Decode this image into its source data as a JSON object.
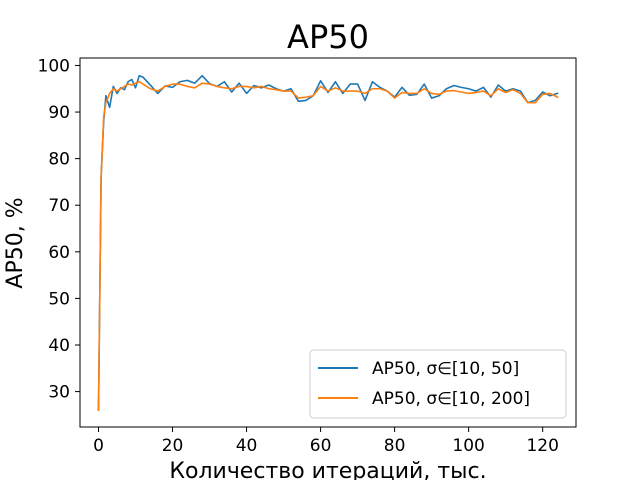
{
  "chart_data": {
    "type": "line",
    "title": "AP50",
    "xlabel": "Количество итераций, тыс.",
    "ylabel": "AP50, %",
    "xlim": [
      -5,
      129
    ],
    "ylim": [
      22.4,
      101.6
    ],
    "xticks": [
      0,
      20,
      40,
      60,
      80,
      100,
      120
    ],
    "yticks": [
      30,
      40,
      50,
      60,
      70,
      80,
      90,
      100
    ],
    "xticklabels": [
      "0",
      "20",
      "40",
      "60",
      "80",
      "100",
      "120"
    ],
    "yticklabels": [
      "30",
      "40",
      "50",
      "60",
      "70",
      "80",
      "90",
      "100"
    ],
    "grid": false,
    "legend_position": "lower-right",
    "series": [
      {
        "name": "AP50, σ∈[10, 50]",
        "color": "#1f77b4",
        "x": [
          0,
          0.7,
          1.4,
          2,
          3,
          4,
          5,
          6,
          7,
          8,
          9,
          10,
          11,
          12,
          14,
          16,
          18,
          20,
          22,
          24,
          26,
          28,
          30,
          32,
          34,
          36,
          38,
          40,
          42,
          44,
          46,
          48,
          50,
          52,
          54,
          56,
          58,
          60,
          62,
          64,
          66,
          68,
          70,
          72,
          74,
          76,
          78,
          80,
          82,
          84,
          86,
          88,
          90,
          92,
          94,
          96,
          98,
          100,
          102,
          104,
          106,
          108,
          110,
          112,
          114,
          116,
          118,
          120,
          122,
          124
        ],
        "values": [
          26,
          76,
          88,
          93.5,
          91,
          95.5,
          94,
          95.2,
          94.8,
          96.5,
          97,
          95.2,
          97.8,
          97.5,
          95.8,
          94,
          95.6,
          95.3,
          96.5,
          96.8,
          96.2,
          97.8,
          96.1,
          95.5,
          96.5,
          94.3,
          96.2,
          94,
          95.7,
          95.2,
          95.8,
          95,
          94.5,
          95,
          92.3,
          92.5,
          93.5,
          96.7,
          94.2,
          96.5,
          94,
          96,
          96,
          92.5,
          96.5,
          95.3,
          94.5,
          93.2,
          95.3,
          93.6,
          93.8,
          96,
          93,
          93.5,
          95,
          95.7,
          95.3,
          95,
          94.5,
          95.3,
          93.2,
          95.8,
          94.5,
          95,
          94.5,
          92,
          92.5,
          94.3,
          93.5,
          94
        ]
      },
      {
        "name": "AP50, σ∈[10, 200]",
        "color": "#ff7f0e",
        "x": [
          0,
          0.7,
          1.4,
          2,
          3,
          4,
          5,
          6,
          7,
          8,
          9,
          10,
          11,
          12,
          14,
          16,
          18,
          20,
          22,
          24,
          26,
          28,
          30,
          32,
          34,
          36,
          38,
          40,
          42,
          44,
          46,
          48,
          50,
          52,
          54,
          56,
          58,
          60,
          62,
          64,
          66,
          68,
          70,
          72,
          74,
          76,
          78,
          80,
          82,
          84,
          86,
          88,
          90,
          92,
          94,
          96,
          98,
          100,
          102,
          104,
          106,
          108,
          110,
          112,
          114,
          116,
          118,
          120,
          122,
          124
        ],
        "values": [
          26,
          76,
          89,
          92,
          94,
          95,
          94.5,
          95,
          95.5,
          96,
          95.8,
          96.2,
          96.5,
          96,
          95,
          94.5,
          95.5,
          96,
          96,
          95.5,
          95.2,
          96.2,
          96,
          95.5,
          95.2,
          95,
          95.5,
          95.5,
          95.2,
          95.5,
          95,
          94.8,
          94.5,
          94.5,
          93,
          93.2,
          93.5,
          95.5,
          94.5,
          95.2,
          94.5,
          94.5,
          94.5,
          94,
          95,
          95,
          94.5,
          93,
          94.2,
          94,
          94,
          95,
          94,
          93.8,
          94.5,
          94.6,
          94.3,
          94,
          94.2,
          94.5,
          93.5,
          95,
          94.2,
          94.8,
          94,
          92,
          92,
          93.8,
          94,
          93.2
        ]
      }
    ]
  }
}
